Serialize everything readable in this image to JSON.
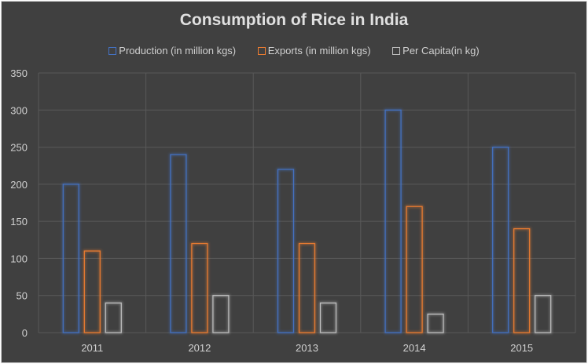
{
  "chart_data": {
    "type": "bar",
    "title": "Consumption of Rice in India",
    "categories": [
      "2011",
      "2012",
      "2013",
      "2014",
      "2015"
    ],
    "series": [
      {
        "name": "Production (in million kgs)",
        "color": "#4472c4",
        "values": [
          200,
          240,
          220,
          300,
          250
        ]
      },
      {
        "name": "Exports (in million kgs)",
        "color": "#ed7d31",
        "values": [
          110,
          120,
          120,
          170,
          140
        ]
      },
      {
        "name": "Per Capita(in kg)",
        "color": "#bfbfbf",
        "values": [
          40,
          50,
          40,
          25,
          50
        ]
      }
    ],
    "ylim": [
      0,
      350
    ],
    "yticks": [
      "0",
      "50",
      "100",
      "150",
      "200",
      "250",
      "300",
      "350"
    ],
    "grid": true,
    "legend": "top",
    "bar_style": "outline with glow",
    "background": "#404040"
  }
}
